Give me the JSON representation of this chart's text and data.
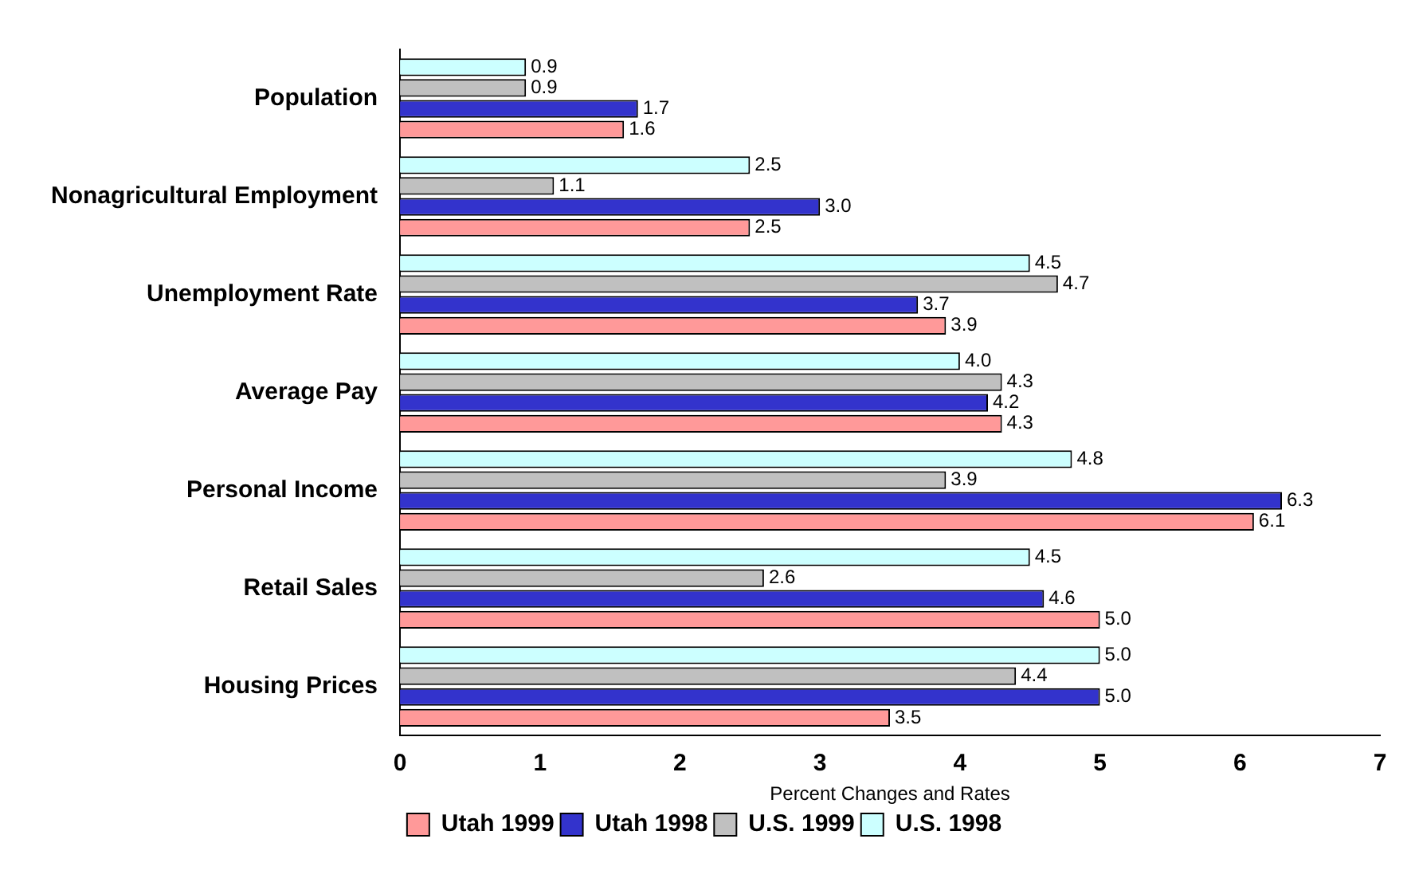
{
  "chart_data": {
    "type": "bar",
    "orientation": "horizontal",
    "xlabel": "Percent Changes and Rates",
    "categories": [
      "Population",
      "Nonagricultural Employment",
      "Unemployment Rate",
      "Average Pay",
      "Personal Income",
      "Retail Sales",
      "Housing Prices"
    ],
    "series": [
      {
        "name": "Utah 1999",
        "color": "#ff9999",
        "values": [
          1.6,
          2.5,
          3.9,
          4.3,
          6.1,
          5.0,
          3.5
        ],
        "value_labels": [
          "1.6",
          "2.5",
          "3.9",
          "4.3",
          "6.1",
          "5.0",
          "3.5"
        ]
      },
      {
        "name": "Utah 1998",
        "color": "#3333cc",
        "values": [
          1.7,
          3.0,
          3.7,
          4.2,
          6.3,
          4.6,
          5.0
        ],
        "value_labels": [
          "1.7",
          "3.0",
          "3.7",
          "4.2",
          "6.3",
          "4.6",
          "5.0"
        ]
      },
      {
        "name": "U.S. 1999",
        "color": "#c0c0c0",
        "values": [
          0.9,
          1.1,
          4.7,
          4.3,
          3.9,
          2.6,
          4.4
        ],
        "value_labels": [
          "0.9",
          "1.1",
          "4.7",
          "4.3",
          "3.9",
          "2.6",
          "4.4"
        ]
      },
      {
        "name": "U.S. 1998",
        "color": "#ccffff",
        "values": [
          0.9,
          2.5,
          4.5,
          4.0,
          4.8,
          4.5,
          5.0
        ],
        "value_labels": [
          "0.9",
          "2.5",
          "4.5",
          "4.0",
          "4.8",
          "4.5",
          "5.0"
        ]
      }
    ],
    "xlim": [
      0,
      7
    ],
    "xticks": [
      0,
      1,
      2,
      3,
      4,
      5,
      6,
      7
    ],
    "grid": false,
    "legend": "bottom"
  }
}
